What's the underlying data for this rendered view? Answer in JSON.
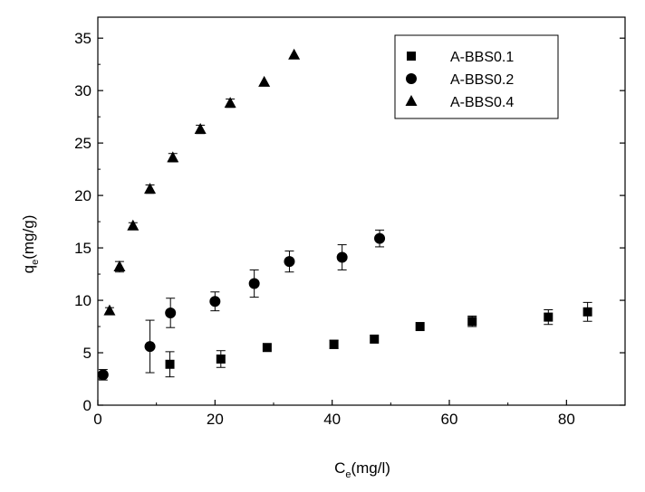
{
  "chart_data": {
    "type": "scatter",
    "xlabel": {
      "main": "C",
      "sub": "e",
      "unit": "(mg/l)"
    },
    "ylabel": {
      "main": "q",
      "sub": "e",
      "unit": "(mg/g)"
    },
    "xlim": [
      0,
      90
    ],
    "ylim": [
      0,
      37
    ],
    "x_ticks": [
      0,
      20,
      40,
      60,
      80
    ],
    "y_ticks": [
      0,
      5,
      10,
      15,
      20,
      25,
      30,
      35
    ],
    "grid": false,
    "legend_position": "top-right",
    "series": [
      {
        "name": "A-BBS0.1",
        "marker": "square",
        "points": [
          {
            "x": 12.3,
            "y": 3.9,
            "err": 1.2
          },
          {
            "x": 21.0,
            "y": 4.4,
            "err": 0.8
          },
          {
            "x": 28.9,
            "y": 5.5,
            "err": 0.0
          },
          {
            "x": 40.3,
            "y": 5.8,
            "err": 0.4
          },
          {
            "x": 47.2,
            "y": 6.3,
            "err": 0.0
          },
          {
            "x": 55.0,
            "y": 7.5,
            "err": 0.0
          },
          {
            "x": 63.9,
            "y": 8.0,
            "err": 0.5
          },
          {
            "x": 76.9,
            "y": 8.4,
            "err": 0.7
          },
          {
            "x": 83.6,
            "y": 8.9,
            "err": 0.9
          }
        ]
      },
      {
        "name": "A-BBS0.2",
        "marker": "circle",
        "points": [
          {
            "x": 0.9,
            "y": 2.9,
            "err": 0.5
          },
          {
            "x": 8.9,
            "y": 5.6,
            "err": 2.5
          },
          {
            "x": 12.4,
            "y": 8.8,
            "err": 1.4
          },
          {
            "x": 20.0,
            "y": 9.9,
            "err": 0.9
          },
          {
            "x": 26.7,
            "y": 11.6,
            "err": 1.3
          },
          {
            "x": 32.7,
            "y": 13.7,
            "err": 1.0
          },
          {
            "x": 41.7,
            "y": 14.1,
            "err": 1.2
          },
          {
            "x": 48.1,
            "y": 15.9,
            "err": 0.8
          }
        ]
      },
      {
        "name": "A-BBS0.4",
        "marker": "triangle",
        "points": [
          {
            "x": 2.0,
            "y": 9.0,
            "err": 0.3
          },
          {
            "x": 3.7,
            "y": 13.2,
            "err": 0.5
          },
          {
            "x": 6.0,
            "y": 17.1,
            "err": 0.3
          },
          {
            "x": 8.9,
            "y": 20.6,
            "err": 0.4
          },
          {
            "x": 12.8,
            "y": 23.6,
            "err": 0.4
          },
          {
            "x": 17.5,
            "y": 26.3,
            "err": 0.4
          },
          {
            "x": 22.6,
            "y": 28.8,
            "err": 0.4
          },
          {
            "x": 28.4,
            "y": 30.8,
            "err": 0.0
          },
          {
            "x": 33.5,
            "y": 33.4,
            "err": 0.0
          }
        ]
      }
    ]
  }
}
